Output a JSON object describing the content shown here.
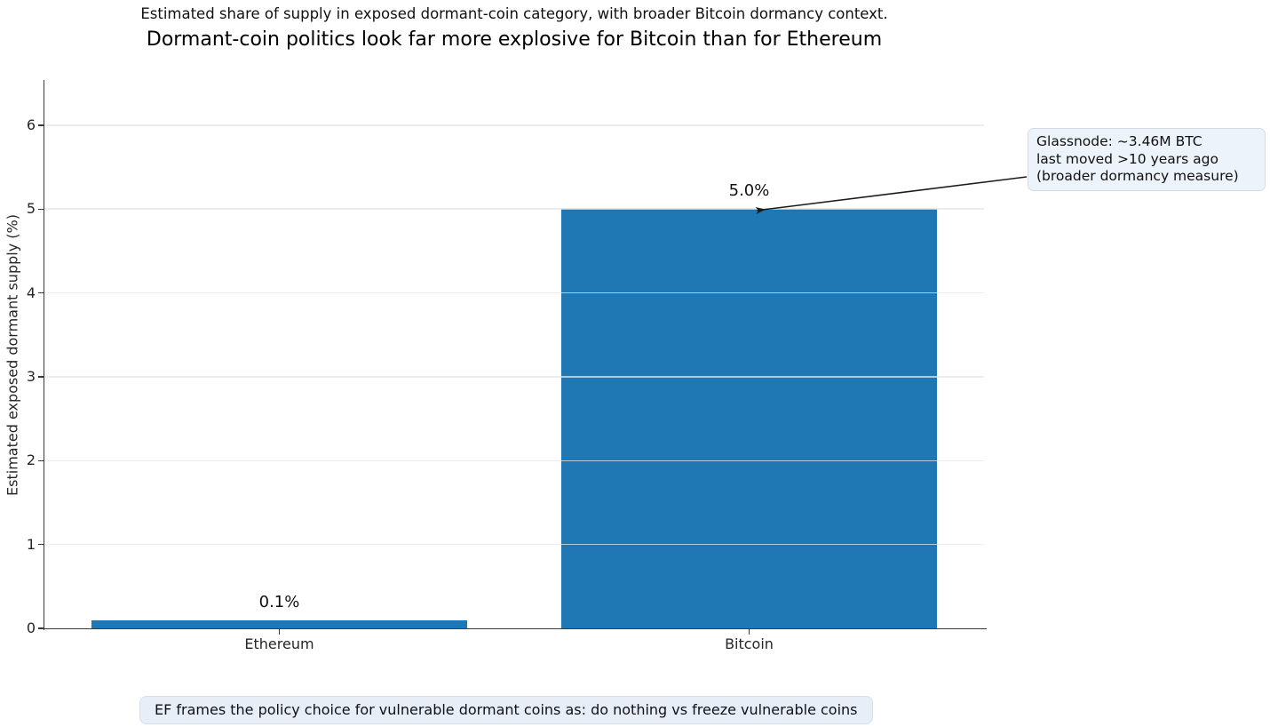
{
  "chart_data": {
    "type": "bar",
    "title": "Dormant-coin politics look far more explosive for Bitcoin than for Ethereum",
    "subtitle": "Estimated share of supply in exposed dormant-coin category, with broader Bitcoin dormancy context.",
    "ylabel": "Estimated exposed dormant supply (%)",
    "xlabel": "",
    "categories": [
      "Ethereum",
      "Bitcoin"
    ],
    "values": [
      0.1,
      5.0
    ],
    "bar_labels": [
      "0.1%",
      "5.0%"
    ],
    "yticks": [
      0,
      1,
      2,
      3,
      4,
      5,
      6
    ],
    "ylim": [
      0,
      6.54
    ],
    "grid": true,
    "legend_position": "none",
    "colors": {
      "bar": "#1f77b4",
      "spine": "#3a3a3a",
      "grid": "#e9ecef",
      "annotation_bg": "#edf3fa",
      "caption_bg": "#e7eef8",
      "arrow": "#1a1a1a"
    },
    "annotation": {
      "lines": [
        "Glassnode: ~3.46M BTC",
        "last moved >10 years ago",
        "(broader dormancy measure)"
      ],
      "target_category": "Bitcoin"
    },
    "caption": "EF frames the policy choice for vulnerable dormant coins as: do nothing vs freeze vulnerable coins"
  }
}
